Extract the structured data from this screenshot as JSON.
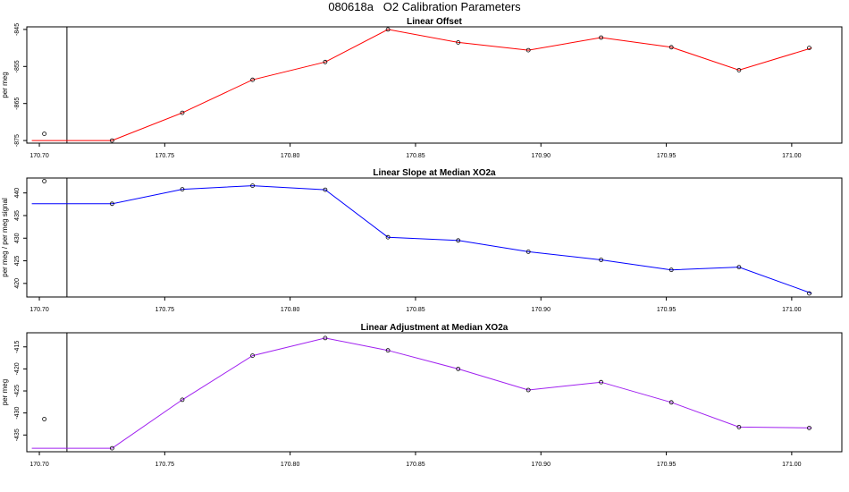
{
  "figure": {
    "title": "080618a   O2 Calibration Parameters"
  },
  "chart_data": [
    {
      "type": "line",
      "title": "Linear Offset",
      "ylabel": "per meg",
      "color": "#ff0000",
      "xlim": [
        170.695,
        171.02
      ],
      "ylim": [
        -875.7,
        -844.3
      ],
      "x_ticks": [
        170.7,
        170.75,
        170.8,
        170.85,
        170.9,
        170.95,
        171.0
      ],
      "x_tick_labels": [
        "170.70",
        "170.75",
        "170.80",
        "170.85",
        "170.90",
        "170.95",
        "171.00"
      ],
      "y_ticks": [
        -875,
        -865,
        -855,
        -845
      ],
      "y_tick_labels": [
        "-875",
        "-865",
        "-855",
        "-845"
      ],
      "vline_x": 170.711,
      "series": [
        {
          "x": [
            170.697,
            170.729,
            170.757,
            170.785,
            170.814,
            170.839,
            170.867,
            170.895,
            170.924,
            170.952,
            170.979,
            171.008
          ],
          "y": [
            -875.0,
            -875.0,
            -867.5,
            -858.6,
            -853.8,
            -845.0,
            -848.5,
            -850.6,
            -847.2,
            -849.8,
            -856.0,
            -850.0
          ]
        }
      ],
      "points": [
        {
          "x": [
            170.702,
            170.729,
            170.757,
            170.785,
            170.814,
            170.839,
            170.867,
            170.895,
            170.924,
            170.952,
            170.979,
            171.007
          ],
          "y": [
            -873.2,
            -875.0,
            -867.5,
            -858.6,
            -853.8,
            -845.0,
            -848.5,
            -850.6,
            -847.2,
            -849.8,
            -856.0,
            -850.0
          ]
        }
      ]
    },
    {
      "type": "line",
      "title": "Linear Slope at Median XO2a",
      "ylabel": "per meg / per meg signal",
      "color": "#0000ff",
      "xlim": [
        170.695,
        171.02
      ],
      "ylim": [
        417.0,
        443.3
      ],
      "x_ticks": [
        170.7,
        170.75,
        170.8,
        170.85,
        170.9,
        170.95,
        171.0
      ],
      "x_tick_labels": [
        "170.70",
        "170.75",
        "170.80",
        "170.85",
        "170.90",
        "170.95",
        "171.00"
      ],
      "y_ticks": [
        420,
        425,
        430,
        435,
        440
      ],
      "y_tick_labels": [
        "420",
        "425",
        "430",
        "435",
        "440"
      ],
      "vline_x": 170.711,
      "series": [
        {
          "x": [
            170.697,
            170.729,
            170.757,
            170.785,
            170.814,
            170.839,
            170.867,
            170.895,
            170.924,
            170.952,
            170.979,
            171.008
          ],
          "y": [
            437.6,
            437.6,
            440.8,
            441.6,
            440.7,
            430.2,
            429.5,
            427.0,
            425.2,
            423.0,
            423.6,
            417.8
          ]
        }
      ],
      "points": [
        {
          "x": [
            170.702,
            170.729,
            170.757,
            170.785,
            170.814,
            170.839,
            170.867,
            170.895,
            170.924,
            170.952,
            170.979,
            171.007
          ],
          "y": [
            442.6,
            437.6,
            440.8,
            441.6,
            440.7,
            430.2,
            429.5,
            427.0,
            425.2,
            423.0,
            423.6,
            417.8
          ]
        }
      ]
    },
    {
      "type": "line",
      "title": "Linear Adjustment at Median XO2a",
      "ylabel": "per meg",
      "color": "#a020f0",
      "xlim": [
        170.695,
        171.02
      ],
      "ylim": [
        -438.8,
        -411.8
      ],
      "x_ticks": [
        170.7,
        170.75,
        170.8,
        170.85,
        170.9,
        170.95,
        171.0
      ],
      "x_tick_labels": [
        "170.70",
        "170.75",
        "170.80",
        "170.85",
        "170.90",
        "170.95",
        "171.00"
      ],
      "y_ticks": [
        -435,
        -430,
        -425,
        -420,
        -415
      ],
      "y_tick_labels": [
        "-435",
        "-430",
        "-425",
        "-420",
        "-415"
      ],
      "vline_x": 170.711,
      "series": [
        {
          "x": [
            170.697,
            170.729,
            170.757,
            170.785,
            170.814,
            170.839,
            170.867,
            170.895,
            170.924,
            170.952,
            170.979,
            171.008
          ],
          "y": [
            -438.0,
            -438.0,
            -427.0,
            -417.0,
            -413.0,
            -415.8,
            -420.0,
            -424.8,
            -423.0,
            -427.6,
            -433.2,
            -433.4
          ]
        }
      ],
      "points": [
        {
          "x": [
            170.702,
            170.729,
            170.757,
            170.785,
            170.814,
            170.839,
            170.867,
            170.895,
            170.924,
            170.952,
            170.979,
            171.007
          ],
          "y": [
            -431.4,
            -438.0,
            -427.0,
            -417.0,
            -413.0,
            -415.8,
            -420.0,
            -424.8,
            -423.0,
            -427.6,
            -433.2,
            -433.4
          ]
        }
      ]
    }
  ]
}
